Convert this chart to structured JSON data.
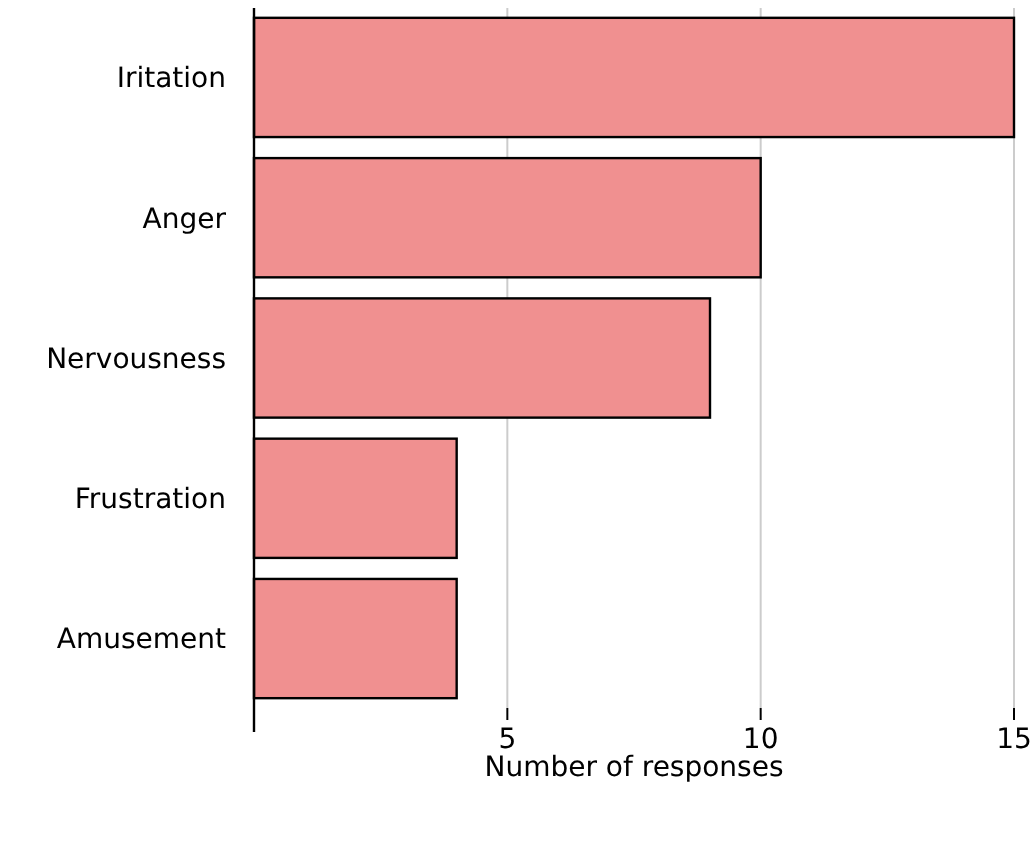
{
  "chart_data": {
    "type": "bar",
    "orientation": "horizontal",
    "categories": [
      "Iritation",
      "Anger",
      "Nervousness",
      "Frustration",
      "Amusement"
    ],
    "values": [
      15,
      10,
      9,
      4,
      4
    ],
    "color": "#f09090",
    "xlabel": "Number of responses",
    "xlim": [
      0,
      15
    ],
    "xticks": [
      5,
      10,
      15
    ],
    "grid": "x"
  }
}
